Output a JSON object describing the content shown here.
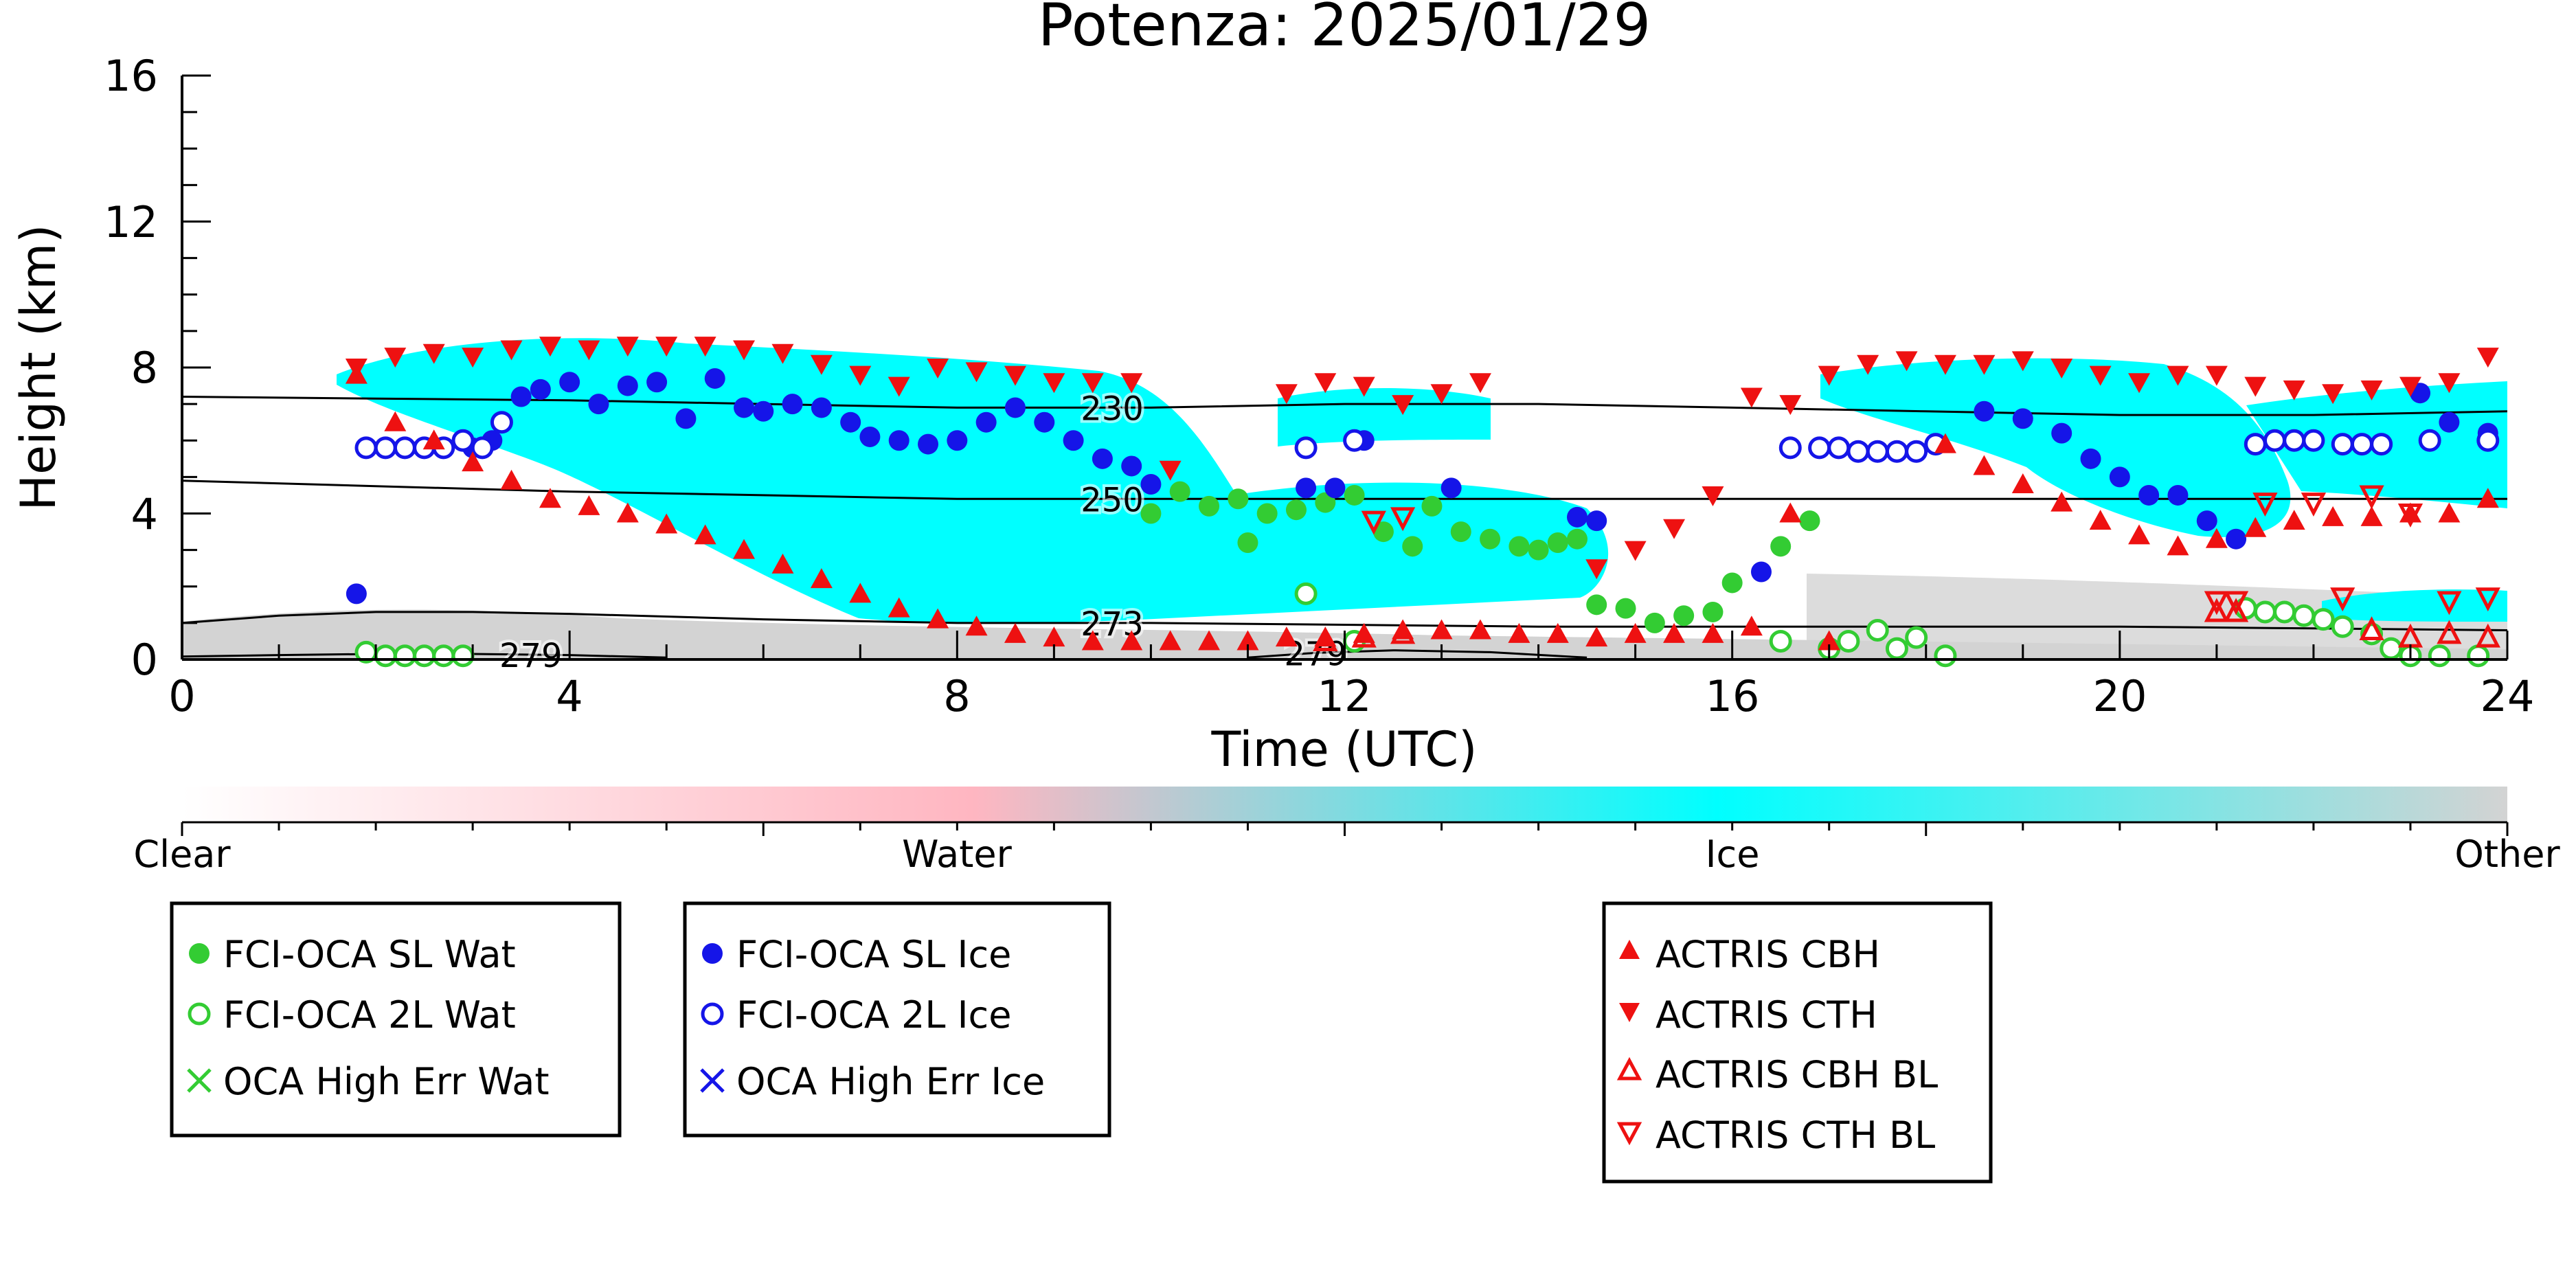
{
  "chart_data": {
    "type": "scatter",
    "title": "Potenza: 2025/01/29",
    "xlabel": "Time (UTC)",
    "ylabel": "Height (km)",
    "xlim": [
      0,
      24
    ],
    "ylim": [
      0,
      16
    ],
    "x_ticks": [
      "0",
      "4",
      "8",
      "12",
      "16",
      "20",
      "24"
    ],
    "y_ticks": [
      "0",
      "4",
      "8",
      "12",
      "16"
    ],
    "grid": false,
    "colorbar": {
      "labels": [
        "Clear",
        "Water",
        "Ice",
        "Other"
      ],
      "colors": [
        "#ffffff",
        "#ffb6c1",
        "#00ffff",
        "#d3d3d3"
      ]
    },
    "contours": [
      {
        "label": "230",
        "x": [
          0,
          2,
          4,
          6,
          8,
          10,
          12,
          14,
          16,
          18,
          20,
          22,
          24
        ],
        "y": [
          7.2,
          7.15,
          7.1,
          7.0,
          6.9,
          6.9,
          7.0,
          7.0,
          6.9,
          6.8,
          6.7,
          6.7,
          6.8
        ]
      },
      {
        "label": "250",
        "x": [
          0,
          2,
          4,
          6,
          8,
          10,
          12,
          14,
          16,
          18,
          20,
          22,
          24
        ],
        "y": [
          4.9,
          4.75,
          4.6,
          4.5,
          4.4,
          4.4,
          4.4,
          4.4,
          4.4,
          4.4,
          4.4,
          4.4,
          4.4
        ]
      },
      {
        "label": "273",
        "x": [
          0,
          1,
          2,
          3,
          4,
          6,
          8,
          10,
          12,
          14,
          16,
          18,
          20,
          22,
          24
        ],
        "y": [
          1.0,
          1.2,
          1.3,
          1.3,
          1.25,
          1.1,
          1.0,
          1.0,
          0.95,
          0.9,
          0.9,
          0.9,
          0.9,
          0.85,
          0.8
        ]
      },
      {
        "label": "279",
        "x": [
          0,
          1,
          2,
          3,
          4,
          5
        ],
        "y": [
          0.08,
          0.12,
          0.15,
          0.15,
          0.12,
          0.05
        ]
      },
      {
        "label": "279",
        "x": [
          11,
          11.7,
          12.5,
          13.5,
          14.5
        ],
        "y": [
          0.05,
          0.18,
          0.25,
          0.2,
          0.05
        ]
      }
    ],
    "series": [
      {
        "name": "FCI-OCA SL Wat",
        "color": "#33cc33",
        "marker": "filled-circle",
        "x": [
          10.0,
          10.3,
          10.6,
          10.9,
          11.0,
          11.2,
          11.5,
          11.8,
          12.1,
          12.4,
          12.7,
          12.9,
          13.2,
          13.5,
          13.8,
          14.0,
          14.2,
          14.4,
          14.6,
          14.9,
          15.2,
          15.5,
          15.8,
          16.0,
          16.5,
          16.8
        ],
        "y": [
          4.0,
          4.6,
          4.2,
          4.4,
          3.2,
          4.0,
          4.1,
          4.3,
          4.5,
          3.5,
          3.1,
          4.2,
          3.5,
          3.3,
          3.1,
          3.0,
          3.2,
          3.3,
          1.5,
          1.4,
          1.0,
          1.2,
          1.3,
          2.1,
          3.1,
          3.8
        ]
      },
      {
        "name": "FCI-OCA 2L Wat",
        "color": "#33cc33",
        "marker": "open-circle",
        "x": [
          1.9,
          2.1,
          2.3,
          2.5,
          2.7,
          2.9,
          11.6,
          12.1,
          16.5,
          17.0,
          17.2,
          17.5,
          17.7,
          17.9,
          18.2,
          21.3,
          21.5,
          21.7,
          21.9,
          22.1,
          22.3,
          22.6,
          22.8,
          23.0,
          23.3,
          23.7
        ],
        "y": [
          0.2,
          0.1,
          0.1,
          0.1,
          0.1,
          0.1,
          1.8,
          0.5,
          0.5,
          0.3,
          0.5,
          0.8,
          0.3,
          0.6,
          0.1,
          1.4,
          1.3,
          1.3,
          1.2,
          1.1,
          0.9,
          0.7,
          0.3,
          0.1,
          0.1,
          0.1
        ]
      },
      {
        "name": "OCA High Err Wat",
        "color": "#33cc33",
        "marker": "x",
        "x": [],
        "y": []
      },
      {
        "name": "FCI-OCA SL Ice",
        "color": "#1515e8",
        "marker": "filled-circle",
        "x": [
          1.8,
          3.0,
          3.2,
          3.5,
          3.7,
          4.0,
          4.3,
          4.6,
          4.9,
          5.2,
          5.5,
          5.8,
          6.0,
          6.3,
          6.6,
          6.9,
          7.1,
          7.4,
          7.7,
          8.0,
          8.3,
          8.6,
          8.9,
          9.2,
          9.5,
          9.8,
          10.0,
          11.6,
          11.9,
          12.2,
          13.1,
          14.4,
          14.6,
          16.3,
          18.6,
          19.0,
          19.4,
          19.7,
          20.0,
          20.3,
          20.6,
          20.9,
          21.2,
          23.1,
          23.4,
          23.8
        ],
        "y": [
          1.8,
          5.8,
          6.0,
          7.2,
          7.4,
          7.6,
          7.0,
          7.5,
          7.6,
          6.6,
          7.7,
          6.9,
          6.8,
          7.0,
          6.9,
          6.5,
          6.1,
          6.0,
          5.9,
          6.0,
          6.5,
          6.9,
          6.5,
          6.0,
          5.5,
          5.3,
          4.8,
          4.7,
          4.7,
          6.0,
          4.7,
          3.9,
          3.8,
          2.4,
          6.8,
          6.6,
          6.2,
          5.5,
          5.0,
          4.5,
          4.5,
          3.8,
          3.3,
          7.3,
          6.5,
          6.2
        ]
      },
      {
        "name": "FCI-OCA 2L Ice",
        "color": "#1515e8",
        "marker": "open-circle",
        "x": [
          1.9,
          2.1,
          2.3,
          2.5,
          2.7,
          2.9,
          3.1,
          3.3,
          11.6,
          12.1,
          16.6,
          16.9,
          17.1,
          17.3,
          17.5,
          17.7,
          17.9,
          18.1,
          21.4,
          21.6,
          21.8,
          22.0,
          22.3,
          22.5,
          22.7,
          23.2,
          23.8
        ],
        "y": [
          5.8,
          5.8,
          5.8,
          5.8,
          5.8,
          6.0,
          5.8,
          6.5,
          5.8,
          6.0,
          5.8,
          5.8,
          5.8,
          5.7,
          5.7,
          5.7,
          5.7,
          5.9,
          5.9,
          6.0,
          6.0,
          6.0,
          5.9,
          5.9,
          5.9,
          6.0,
          6.0
        ]
      },
      {
        "name": "OCA High Err Ice",
        "color": "#1515e8",
        "marker": "x",
        "x": [],
        "y": []
      },
      {
        "name": "ACTRIS CBH",
        "color": "#ee1111",
        "marker": "filled-triangle-up",
        "x": [
          1.8,
          2.2,
          2.6,
          3.0,
          3.4,
          3.8,
          4.2,
          4.6,
          5.0,
          5.4,
          5.8,
          6.2,
          6.6,
          7.0,
          7.4,
          7.8,
          8.2,
          8.6,
          9.0,
          9.4,
          9.8,
          10.2,
          10.6,
          11.0,
          11.4,
          11.8,
          12.2,
          12.6,
          13.0,
          13.4,
          13.8,
          14.2,
          14.6,
          15.0,
          15.4,
          15.8,
          16.2,
          16.6,
          17.0,
          18.2,
          18.6,
          19.0,
          19.4,
          19.8,
          20.2,
          20.6,
          21.0,
          21.4,
          21.8,
          22.2,
          22.6,
          23.0,
          23.4,
          23.8
        ],
        "y": [
          7.8,
          6.5,
          6.0,
          5.4,
          4.9,
          4.4,
          4.2,
          4.0,
          3.7,
          3.4,
          3.0,
          2.6,
          2.2,
          1.8,
          1.4,
          1.1,
          0.9,
          0.7,
          0.6,
          0.5,
          0.5,
          0.5,
          0.5,
          0.5,
          0.6,
          0.6,
          0.7,
          0.8,
          0.8,
          0.8,
          0.7,
          0.7,
          0.6,
          0.7,
          0.7,
          0.7,
          0.9,
          4.0,
          0.5,
          5.9,
          5.3,
          4.8,
          4.3,
          3.8,
          3.4,
          3.1,
          3.3,
          3.6,
          3.8,
          3.9,
          3.9,
          4.0,
          4.0,
          4.4
        ]
      },
      {
        "name": "ACTRIS CTH",
        "color": "#ee1111",
        "marker": "filled-triangle-down",
        "x": [
          1.8,
          2.2,
          2.6,
          3.0,
          3.4,
          3.8,
          4.2,
          4.6,
          5.0,
          5.4,
          5.8,
          6.2,
          6.6,
          7.0,
          7.4,
          7.8,
          8.2,
          8.6,
          9.0,
          9.4,
          9.8,
          10.2,
          11.4,
          11.8,
          12.2,
          12.6,
          13.0,
          13.4,
          14.6,
          15.0,
          15.4,
          15.8,
          16.2,
          16.6,
          17.0,
          17.4,
          17.8,
          18.2,
          18.6,
          19.0,
          19.4,
          19.8,
          20.2,
          20.6,
          21.0,
          21.4,
          21.8,
          22.2,
          22.6,
          23.0,
          23.4,
          23.8
        ],
        "y": [
          8.0,
          8.3,
          8.4,
          8.3,
          8.5,
          8.6,
          8.5,
          8.6,
          8.6,
          8.6,
          8.5,
          8.4,
          8.1,
          7.8,
          7.5,
          8.0,
          7.9,
          7.8,
          7.6,
          7.6,
          7.6,
          5.2,
          7.3,
          7.6,
          7.5,
          7.0,
          7.3,
          7.6,
          2.5,
          3.0,
          3.6,
          4.5,
          7.2,
          7.0,
          7.8,
          8.1,
          8.2,
          8.1,
          8.1,
          8.2,
          8.0,
          7.8,
          7.6,
          7.8,
          7.8,
          7.5,
          7.4,
          7.3,
          7.4,
          7.5,
          7.6,
          8.3
        ]
      },
      {
        "name": "ACTRIS CBH BL",
        "color": "#ee1111",
        "marker": "open-triangle-up",
        "x": [
          11.8,
          12.2,
          12.6,
          21.0,
          21.2,
          22.6,
          23.0,
          23.4,
          23.8
        ],
        "y": [
          0.5,
          0.6,
          0.7,
          1.3,
          1.3,
          0.8,
          0.6,
          0.7,
          0.6
        ]
      },
      {
        "name": "ACTRIS CTH BL",
        "color": "#ee1111",
        "marker": "open-triangle-down",
        "x": [
          12.3,
          12.6,
          21.0,
          21.2,
          21.5,
          22.0,
          22.3,
          22.6,
          23.0,
          23.4,
          23.8
        ],
        "y": [
          3.8,
          3.9,
          1.6,
          1.6,
          4.3,
          4.3,
          1.7,
          4.5,
          4.0,
          1.6,
          1.7
        ]
      }
    ]
  }
}
